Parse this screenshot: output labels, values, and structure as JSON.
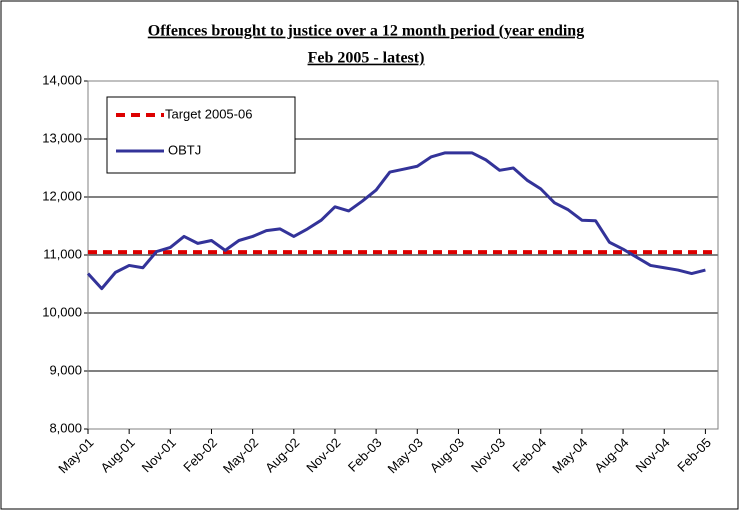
{
  "chart_data": {
    "type": "line",
    "title": [
      "Offences brought to justice over a 12 month period (year ending",
      "Feb 2005 - latest)"
    ],
    "categories": [
      "May-01",
      null,
      null,
      "Aug-01",
      null,
      null,
      "Nov-01",
      null,
      null,
      "Feb-02",
      null,
      null,
      "May-02",
      null,
      null,
      "Aug-02",
      null,
      null,
      "Nov-02",
      null,
      null,
      "Feb-03",
      null,
      null,
      "May-03",
      null,
      null,
      "Aug-03",
      null,
      null,
      "Nov-03",
      null,
      null,
      "Feb-04",
      null,
      null,
      "May-04",
      null,
      null,
      "Aug-04",
      null,
      null,
      "Nov-04",
      null,
      null,
      "Feb-05"
    ],
    "series": [
      {
        "name": "OBTJ",
        "color": "#333399",
        "values": [
          10680,
          10420,
          10700,
          10820,
          10780,
          11060,
          11130,
          11320,
          11200,
          11250,
          11080,
          11250,
          11320,
          11420,
          11450,
          11320,
          11450,
          11600,
          11830,
          11760,
          11930,
          12120,
          12430,
          12480,
          12530,
          12690,
          12760,
          12760,
          12760,
          12640,
          12460,
          12500,
          12290,
          12140,
          11900,
          11780,
          11600,
          11590,
          11220,
          11100,
          10960,
          10820,
          10780,
          10740,
          10680,
          10740
        ]
      }
    ],
    "target": {
      "name": "Target 2005-06",
      "color": "#dd0000",
      "value": 11050
    },
    "ylim": [
      8000,
      14000
    ],
    "yticks": [
      {
        "value": 8000,
        "label": "8,000"
      },
      {
        "value": 9000,
        "label": "9,000"
      },
      {
        "value": 10000,
        "label": "10,000"
      },
      {
        "value": 11000,
        "label": "11,000"
      },
      {
        "value": 12000,
        "label": "12,000"
      },
      {
        "value": 13000,
        "label": "13,000"
      },
      {
        "value": 14000,
        "label": "14,000"
      }
    ],
    "grid": true
  }
}
